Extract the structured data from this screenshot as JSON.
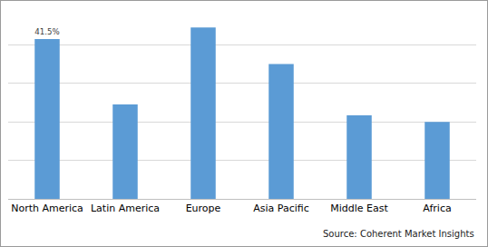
{
  "chart_data": {
    "type": "bar",
    "categories": [
      "North America",
      "Latin America",
      "Europe",
      "Asia Pacific",
      "Middle East",
      "Africa"
    ],
    "values": [
      41.5,
      24.5,
      44.5,
      35,
      21.7,
      20
    ],
    "value_labels": [
      "41.5%",
      null,
      null,
      null,
      null,
      null
    ],
    "data_labels": true,
    "color": "#5b9bd5",
    "ylim": [
      0,
      50
    ],
    "yticks": [
      0,
      10,
      20,
      30,
      40,
      50
    ],
    "grid": true,
    "tick_labels": "x",
    "source": "Source: Coherent Market Insights"
  }
}
